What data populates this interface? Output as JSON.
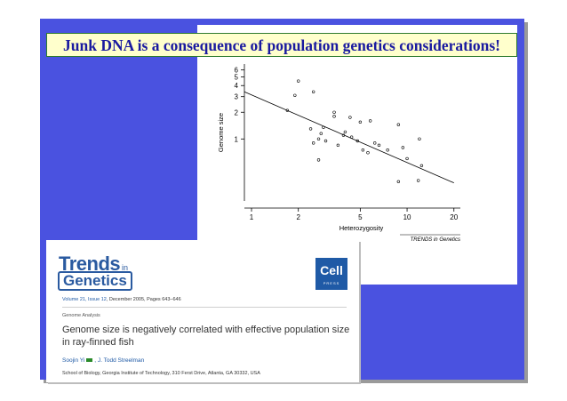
{
  "slide": {
    "title": "Junk DNA is a consequence of population genetics considerations!"
  },
  "chart_data": {
    "type": "scatter",
    "xlabel": "Heterozygosity",
    "ylabel": "Genome size",
    "x_scale": "log",
    "y_scale": "log",
    "x_ticks": [
      "1",
      "2",
      "5",
      "10",
      "20"
    ],
    "y_ticks": [
      "1",
      "2",
      "3",
      "4",
      "5",
      "6"
    ],
    "xlim": [
      0.9,
      22
    ],
    "ylim": [
      0.2,
      7
    ],
    "credit": "TRENDS in Genetics",
    "points": [
      {
        "x": 1.9,
        "y": 3.1
      },
      {
        "x": 2.0,
        "y": 4.5
      },
      {
        "x": 1.7,
        "y": 2.1
      },
      {
        "x": 2.5,
        "y": 3.4
      },
      {
        "x": 3.4,
        "y": 2.0
      },
      {
        "x": 3.4,
        "y": 1.8
      },
      {
        "x": 3.9,
        "y": 1.1
      },
      {
        "x": 4.3,
        "y": 1.75
      },
      {
        "x": 5.0,
        "y": 1.55
      },
      {
        "x": 5.8,
        "y": 1.6
      },
      {
        "x": 2.4,
        "y": 1.3
      },
      {
        "x": 2.7,
        "y": 1.0
      },
      {
        "x": 2.9,
        "y": 1.35
      },
      {
        "x": 2.8,
        "y": 1.15
      },
      {
        "x": 2.5,
        "y": 0.9
      },
      {
        "x": 3.0,
        "y": 0.95
      },
      {
        "x": 3.6,
        "y": 0.85
      },
      {
        "x": 4.0,
        "y": 1.2
      },
      {
        "x": 4.4,
        "y": 1.05
      },
      {
        "x": 4.8,
        "y": 0.95
      },
      {
        "x": 5.2,
        "y": 0.75
      },
      {
        "x": 5.6,
        "y": 0.7
      },
      {
        "x": 6.2,
        "y": 0.9
      },
      {
        "x": 6.6,
        "y": 0.85
      },
      {
        "x": 7.5,
        "y": 0.75
      },
      {
        "x": 8.8,
        "y": 1.45
      },
      {
        "x": 9.4,
        "y": 0.8
      },
      {
        "x": 10.0,
        "y": 0.6
      },
      {
        "x": 12.0,
        "y": 1.0
      },
      {
        "x": 12.4,
        "y": 0.5
      },
      {
        "x": 8.8,
        "y": 0.33
      },
      {
        "x": 11.8,
        "y": 0.34
      },
      {
        "x": 2.7,
        "y": 0.58
      }
    ],
    "regression": {
      "x": [
        0.9,
        20
      ],
      "y": [
        3.4,
        0.32
      ]
    }
  },
  "journal": {
    "brand_main": "Trends",
    "brand_in": "in",
    "brand_sub": "Genetics",
    "publisher_logo": "Cell",
    "publisher_sub": "PRESS",
    "volume": "Volume 21, Issue 12",
    "date_pages": ", December 2005, Pages 643–646",
    "section": "Genome Analysis",
    "article_title": "Genome size is negatively correlated with effective population size in ray-finned fish",
    "author1": "Soojin Yi",
    "author2": ", J. Todd Streelman",
    "affiliation": "School of Biology, Georgia Institute of Technology, 310 Ferst Drive, Atlanta, GA 30332, USA"
  }
}
